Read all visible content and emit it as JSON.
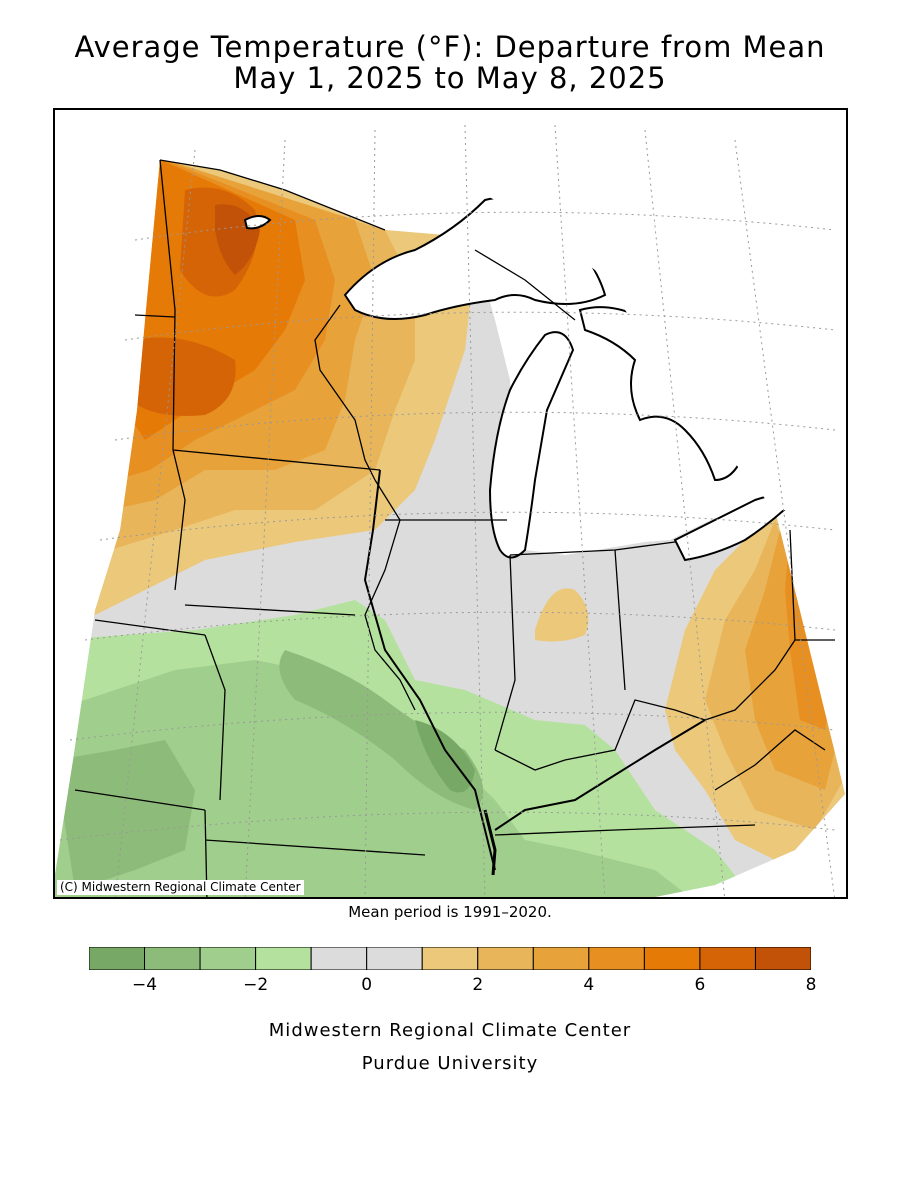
{
  "title": {
    "line1": "Average Temperature (°F): Departure from Mean",
    "line2": "May 1, 2025 to May 8, 2025"
  },
  "copyright": "(C) Midwestern Regional Climate Center",
  "mean_note": "Mean period is 1991–2020.",
  "legend": {
    "bins": [
      {
        "from": -5,
        "to": -4,
        "color": "#78A865"
      },
      {
        "from": -4,
        "to": -3,
        "color": "#8DBB79"
      },
      {
        "from": -3,
        "to": -2,
        "color": "#A0CE8C"
      },
      {
        "from": -2,
        "to": -1,
        "color": "#B4E29E"
      },
      {
        "from": -1,
        "to": 0,
        "color": "#DCDCDC"
      },
      {
        "from": 0,
        "to": 1,
        "color": "#DCDCDC"
      },
      {
        "from": 1,
        "to": 2,
        "color": "#EBC87A"
      },
      {
        "from": 2,
        "to": 3,
        "color": "#E9B55A"
      },
      {
        "from": 3,
        "to": 4,
        "color": "#E8A23A"
      },
      {
        "from": 4,
        "to": 5,
        "color": "#E88F22"
      },
      {
        "from": 5,
        "to": 6,
        "color": "#E67A06"
      },
      {
        "from": 6,
        "to": 7,
        "color": "#D56407"
      },
      {
        "from": 7,
        "to": 8,
        "color": "#C25208"
      }
    ],
    "tick_labels": [
      "−4",
      "−2",
      "0",
      "2",
      "4",
      "6",
      "8"
    ],
    "tick_values": [
      -4,
      -2,
      0,
      2,
      4,
      6,
      8
    ],
    "range": [
      -5,
      8
    ]
  },
  "credit": {
    "line1": "Midwestern Regional Climate Center",
    "line2": "Purdue University"
  }
}
